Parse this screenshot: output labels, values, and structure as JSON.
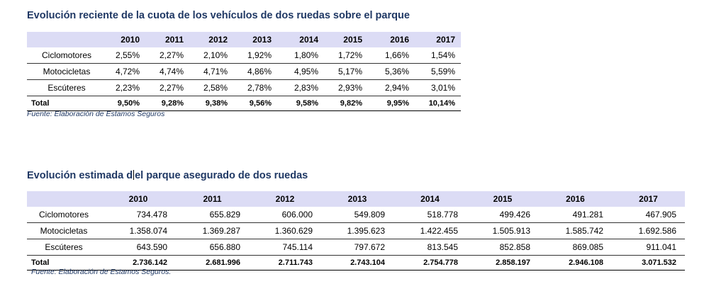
{
  "table1": {
    "title": "Evolución reciente de la cuota de los vehículos de dos ruedas sobre el parque",
    "years": [
      "2010",
      "2011",
      "2012",
      "2013",
      "2014",
      "2015",
      "2016",
      "2017"
    ],
    "rows": [
      {
        "label": "Ciclomotores",
        "values": [
          "2,55%",
          "2,27%",
          "2,10%",
          "1,92%",
          "1,80%",
          "1,72%",
          "1,66%",
          "1,54%"
        ]
      },
      {
        "label": "Motocicletas",
        "values": [
          "4,72%",
          "4,74%",
          "4,71%",
          "4,86%",
          "4,95%",
          "5,17%",
          "5,36%",
          "5,59%"
        ]
      },
      {
        "label": "Escúteres",
        "values": [
          "2,23%",
          "2,27%",
          "2,58%",
          "2,78%",
          "2,83%",
          "2,93%",
          "2,94%",
          "3,01%"
        ]
      },
      {
        "label": "Total",
        "values": [
          "9,50%",
          "9,28%",
          "9,38%",
          "9,56%",
          "9,58%",
          "9,82%",
          "9,95%",
          "10,14%"
        ]
      }
    ],
    "source": "Fuente: Elaboración de Estamos Seguros"
  },
  "table2": {
    "title_a": "Evolución estimada d",
    "title_b": "el parque asegurado de dos ruedas",
    "years": [
      "2010",
      "2011",
      "2012",
      "2013",
      "2014",
      "2015",
      "2016",
      "2017"
    ],
    "rows": [
      {
        "label": "Ciclomotores",
        "values": [
          "734.478",
          "655.829",
          "606.000",
          "549.809",
          "518.778",
          "499.426",
          "491.281",
          "467.905"
        ]
      },
      {
        "label": "Motocicletas",
        "values": [
          "1.358.074",
          "1.369.287",
          "1.360.629",
          "1.395.623",
          "1.422.455",
          "1.505.913",
          "1.585.742",
          "1.692.586"
        ]
      },
      {
        "label": "Escúteres",
        "values": [
          "643.590",
          "656.880",
          "745.114",
          "797.672",
          "813.545",
          "852.858",
          "869.085",
          "911.041"
        ]
      },
      {
        "label": "Total",
        "values": [
          "2.736.142",
          "2.681.996",
          "2.711.743",
          "2.743.104",
          "2.754.778",
          "2.858.197",
          "2.946.108",
          "3.071.532"
        ]
      }
    ],
    "source": "Fuente: Elaboración de Estamos Seguros."
  }
}
